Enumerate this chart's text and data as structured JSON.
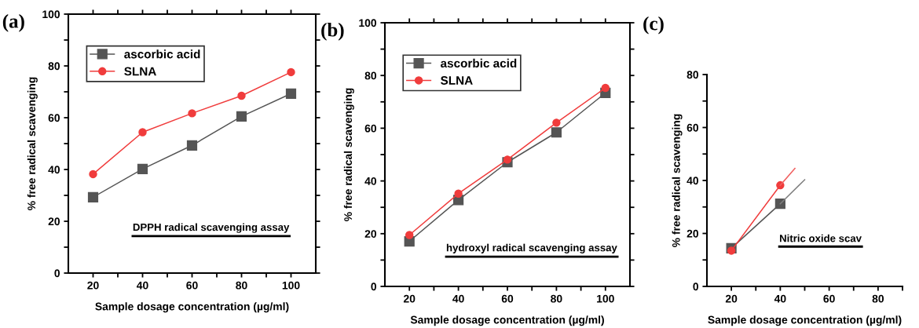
{
  "chart_data": [
    {
      "type": "line",
      "title": "(a)",
      "xlabel": "Sample dosage concentration (µg/ml)",
      "ylabel": "% free radical scavenging",
      "x": [
        20,
        40,
        60,
        80,
        100
      ],
      "xlim": [
        10,
        110
      ],
      "ylim": [
        0,
        100
      ],
      "xticks": [
        20,
        {
          "value": 30,
          "label": null
        },
        40,
        {
          "value": 50,
          "label": null
        },
        60,
        {
          "value": 70,
          "label": null
        },
        80,
        {
          "value": 90,
          "label": null
        },
        100
      ],
      "yticks": [
        0,
        {
          "value": 10,
          "label": null
        },
        20,
        {
          "value": 30,
          "label": null
        },
        40,
        {
          "value": 50,
          "label": null
        },
        60,
        {
          "value": 70,
          "label": null
        },
        80,
        {
          "value": 90,
          "label": null
        },
        100
      ],
      "line_style": "solid",
      "legend": "top left",
      "grid": false,
      "annotations": [
        "DPPH radical scavenging assay"
      ],
      "series": [
        {
          "name": "ascorbic acid",
          "color": "#555555",
          "marker": "square",
          "values": [
            29.3,
            40.2,
            49.3,
            60.5,
            69.3
          ]
        },
        {
          "name": "SLNA",
          "color": "#f03c3c",
          "marker": "circle",
          "values": [
            38.2,
            54.4,
            61.7,
            68.5,
            77.6
          ]
        }
      ]
    },
    {
      "type": "line",
      "title": "(b)",
      "xlabel": "Sample dosage concentration (µg/ml)",
      "ylabel": "% free radical scavenging",
      "x": [
        20,
        40,
        60,
        80,
        100
      ],
      "xlim": [
        10,
        110
      ],
      "ylim": [
        0,
        100
      ],
      "xticks": [
        20,
        {
          "value": 30,
          "label": null
        },
        40,
        {
          "value": 50,
          "label": null
        },
        60,
        {
          "value": 70,
          "label": null
        },
        80,
        {
          "value": 90,
          "label": null
        },
        100
      ],
      "yticks": [
        0,
        {
          "value": 10,
          "label": null
        },
        20,
        {
          "value": 30,
          "label": null
        },
        40,
        {
          "value": 50,
          "label": null
        },
        60,
        {
          "value": 70,
          "label": null
        },
        80,
        {
          "value": 90,
          "label": null
        },
        100
      ],
      "line_style": "solid",
      "legend": "top left",
      "grid": false,
      "annotations": [
        "hydroxyl radical scavenging assay"
      ],
      "series": [
        {
          "name": "ascorbic acid",
          "color": "#555555",
          "marker": "square",
          "values": [
            17.1,
            32.8,
            47.1,
            58.4,
            73.4
          ]
        },
        {
          "name": "SLNA",
          "color": "#f03c3c",
          "marker": "circle",
          "values": [
            19.5,
            35.2,
            48.1,
            62.1,
            75.3
          ]
        }
      ]
    },
    {
      "type": "line",
      "title": "(c)",
      "xlabel": "Sample dosage concentration (µg/ml)",
      "ylabel": "% free radical scavenging",
      "x": [
        20,
        40
      ],
      "xlim": [
        10,
        90
      ],
      "ylim": [
        0,
        80
      ],
      "xticks": [
        20,
        {
          "value": 30,
          "label": null
        },
        40,
        {
          "value": 50,
          "label": null
        },
        60,
        {
          "value": 70,
          "label": null
        },
        80,
        {
          "value": 90,
          "label": null
        }
      ],
      "yticks": [
        0,
        {
          "value": 10,
          "label": null
        },
        20,
        {
          "value": 30,
          "label": null
        },
        40,
        {
          "value": 50,
          "label": null
        },
        60,
        {
          "value": 70,
          "label": null
        },
        80
      ],
      "line_style": "solid",
      "legend": false,
      "grid": false,
      "annotations": [
        "Nitric oxide scav"
      ],
      "series": [
        {
          "color": "#555555",
          "marker": "square",
          "values": [
            14.4,
            31.2
          ]
        },
        {
          "color": "#f03c3c",
          "marker": "circle",
          "values": [
            13.5,
            38.2
          ]
        },
        {
          "color": "#808080",
          "marker": "none",
          "x": [
            40,
            50
          ],
          "values": [
            31.2,
            40.3
          ]
        },
        {
          "color": "#f06060",
          "marker": "none",
          "x": [
            40,
            46
          ],
          "values": [
            38.2,
            44.6
          ]
        }
      ]
    }
  ]
}
